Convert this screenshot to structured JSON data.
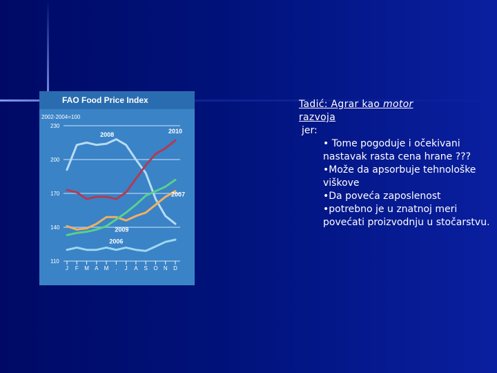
{
  "slide": {
    "heading_prefix": "Tadić: Agrar kao ",
    "heading_em": "motor",
    "heading_suffix": "razvoja",
    "jer": "jer:",
    "bullets": [
      "• Tome pogoduje i očekivani nastavak rasta cena hrane ???",
      "•Može da apsorbuje tehnološke viškove",
      "•Da poveća zaposlenost",
      "•potrebno je u znatnoj meri povećati proizvodnju u stočarstvu."
    ]
  },
  "chart_data": {
    "type": "line",
    "title": "FAO Food Price Index",
    "subtitle": "2002-2004=100",
    "ylim": [
      110,
      230
    ],
    "yticks": [
      110,
      140,
      170,
      200,
      230
    ],
    "ytick_labels": [
      "110",
      "140",
      "170",
      "200",
      "230"
    ],
    "categories": [
      "J",
      "F",
      "M",
      "A",
      "M",
      ".",
      "J",
      "A",
      "S",
      "O",
      "N",
      "D"
    ],
    "grid": true,
    "colors": {
      "panel": "#3a83c6",
      "title_bar": "#2a6cb0",
      "grid": "#9cc6ea"
    },
    "series": [
      {
        "name": "2008",
        "color": "#b8dcf4",
        "values": [
          191,
          213,
          215,
          213,
          214,
          218,
          213,
          200,
          188,
          165,
          150,
          143
        ]
      },
      {
        "name": "2010",
        "color": "#b33a55",
        "values": [
          173,
          171,
          165,
          167,
          167,
          165,
          171,
          183,
          195,
          205,
          210,
          217
        ]
      },
      {
        "name": "2007",
        "color": "#f0b060",
        "values": [
          141,
          138,
          139,
          143,
          149,
          149,
          146,
          150,
          153,
          160,
          167,
          172
        ]
      },
      {
        "name": "2009",
        "color": "#5ad08c",
        "values": [
          133,
          135,
          136,
          138,
          141,
          147,
          153,
          160,
          168,
          172,
          176,
          182
        ]
      },
      {
        "name": "2006",
        "color": "#9fd8f2",
        "values": [
          120,
          122,
          120,
          120,
          122,
          120,
          122,
          120,
          119,
          123,
          127,
          129
        ]
      }
    ],
    "series_label_positions": {
      "2008": "above-left",
      "2010": "top-right",
      "2007": "right",
      "2009": "middle",
      "2006": "bottom-middle"
    }
  }
}
